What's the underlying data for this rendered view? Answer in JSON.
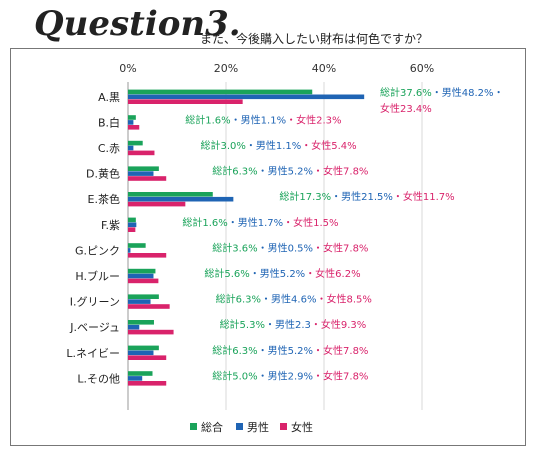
{
  "header": {
    "question": "Question3.",
    "title": "また、今後購入したい財布は何色ですか？"
  },
  "colors": {
    "total": "#1aa35a",
    "male": "#1f64b4",
    "female": "#d9236b"
  },
  "chart_data": {
    "type": "bar",
    "orientation": "horizontal",
    "x_ticks": [
      "0%",
      "20%",
      "40%",
      "60%"
    ],
    "xlim": [
      0,
      60
    ],
    "categories": [
      "A.黒",
      "B.白",
      "C.赤",
      "D.黄色",
      "E.茶色",
      "F.紫",
      "G.ピンク",
      "H.ブルー",
      "I.グリーン",
      "J.ベージュ",
      "L.ネイビー",
      "L.その他"
    ],
    "series": [
      {
        "name": "総合",
        "values": [
          37.6,
          1.6,
          3.0,
          6.3,
          17.3,
          1.6,
          3.6,
          5.6,
          6.3,
          5.3,
          6.3,
          5.0
        ]
      },
      {
        "name": "男性",
        "values": [
          48.2,
          1.1,
          1.1,
          5.2,
          21.5,
          1.7,
          0.5,
          5.2,
          4.6,
          2.3,
          5.2,
          2.9
        ]
      },
      {
        "name": "女性",
        "values": [
          23.4,
          2.3,
          5.4,
          7.8,
          11.7,
          1.5,
          7.8,
          6.2,
          8.5,
          9.3,
          7.8,
          7.8
        ]
      }
    ],
    "data_labels": [
      [
        "総計37.6%",
        "・男性48.2%",
        "・",
        "女性23.4%"
      ],
      [
        "総計1.6%",
        "・男性1.1%",
        "・女性2.3%"
      ],
      [
        "総計3.0%",
        "・男性1.1%",
        "・女性5.4%"
      ],
      [
        "総計6.3%",
        "・男性5.2%",
        "・女性7.8%"
      ],
      [
        "総計17.3%",
        "・男性21.5%",
        "・女性11.7%"
      ],
      [
        "総計1.6%",
        "・男性1.7%",
        "・女性1.5%"
      ],
      [
        "総計3.6%",
        "・男性0.5%",
        "・女性7.8%"
      ],
      [
        "総計5.6%",
        "・男性5.2%",
        "・女性6.2%"
      ],
      [
        "総計6.3%",
        "・男性4.6%",
        "・女性8.5%"
      ],
      [
        "総計5.3%",
        "・男性2.3",
        "・女性9.3%"
      ],
      [
        "総計6.3%",
        "・男性5.2%",
        "・女性7.8%"
      ],
      [
        "総計5.0%",
        "・男性2.9%",
        "・女性7.8%"
      ]
    ],
    "legend": [
      "総合",
      "男性",
      "女性"
    ],
    "legend_position": "bottom"
  }
}
